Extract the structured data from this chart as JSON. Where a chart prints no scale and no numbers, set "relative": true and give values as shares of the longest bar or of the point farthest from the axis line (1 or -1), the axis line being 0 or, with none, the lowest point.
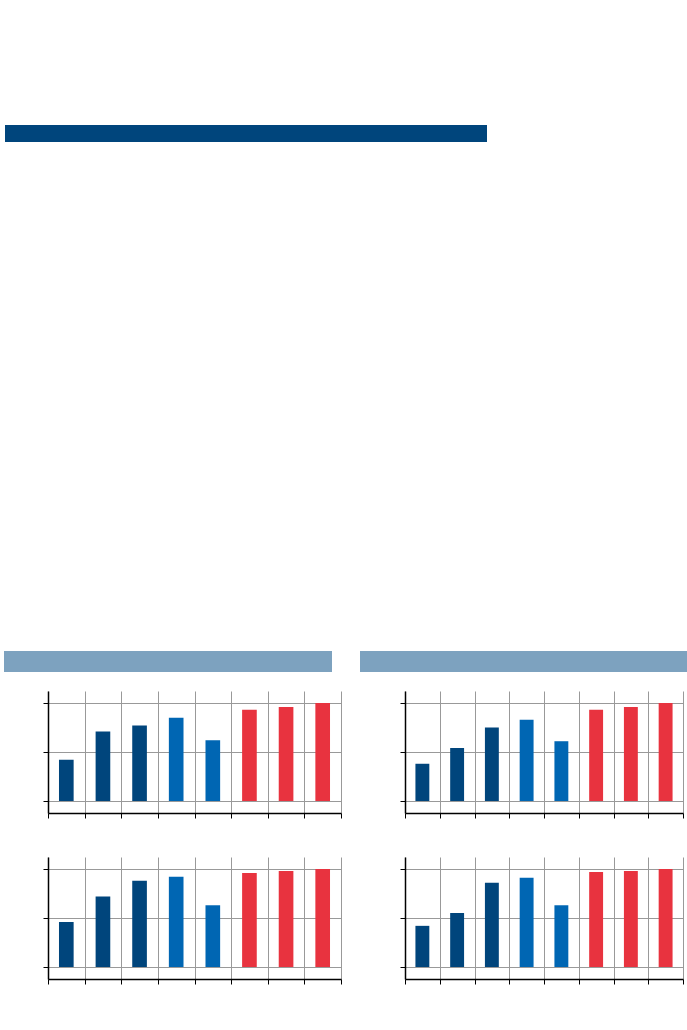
{
  "chart_data": [
    {
      "type": "bar",
      "relative": true,
      "grid": true,
      "categories": [
        null,
        null,
        null,
        null,
        null,
        null,
        null,
        null
      ],
      "values": [
        0.42,
        0.71,
        0.77,
        0.85,
        0.62,
        0.93,
        0.96,
        1
      ],
      "colors": [
        "#00457c",
        "#00457c",
        "#00457c",
        "#0066b3",
        "#0066b3",
        "#e8333f",
        "#e8333f",
        "#e8333f"
      ]
    },
    {
      "type": "bar",
      "relative": true,
      "grid": true,
      "categories": [
        null,
        null,
        null,
        null,
        null,
        null,
        null,
        null
      ],
      "values": [
        0.38,
        0.54,
        0.75,
        0.83,
        0.61,
        0.93,
        0.96,
        1
      ],
      "colors": [
        "#00457c",
        "#00457c",
        "#00457c",
        "#0066b3",
        "#0066b3",
        "#e8333f",
        "#e8333f",
        "#e8333f"
      ]
    },
    {
      "type": "bar",
      "relative": true,
      "grid": true,
      "categories": [
        null,
        null,
        null,
        null,
        null,
        null,
        null,
        null
      ],
      "values": [
        0.46,
        0.72,
        0.88,
        0.92,
        0.63,
        0.96,
        0.98,
        1
      ],
      "colors": [
        "#00457c",
        "#00457c",
        "#00457c",
        "#0066b3",
        "#0066b3",
        "#e8333f",
        "#e8333f",
        "#e8333f"
      ]
    },
    {
      "type": "bar",
      "relative": true,
      "grid": true,
      "categories": [
        null,
        null,
        null,
        null,
        null,
        null,
        null,
        null
      ],
      "values": [
        0.42,
        0.55,
        0.86,
        0.91,
        0.63,
        0.97,
        0.98,
        1
      ],
      "colors": [
        "#00457c",
        "#00457c",
        "#00457c",
        "#0066b3",
        "#0066b3",
        "#e8333f",
        "#e8333f",
        "#e8333f"
      ]
    }
  ]
}
